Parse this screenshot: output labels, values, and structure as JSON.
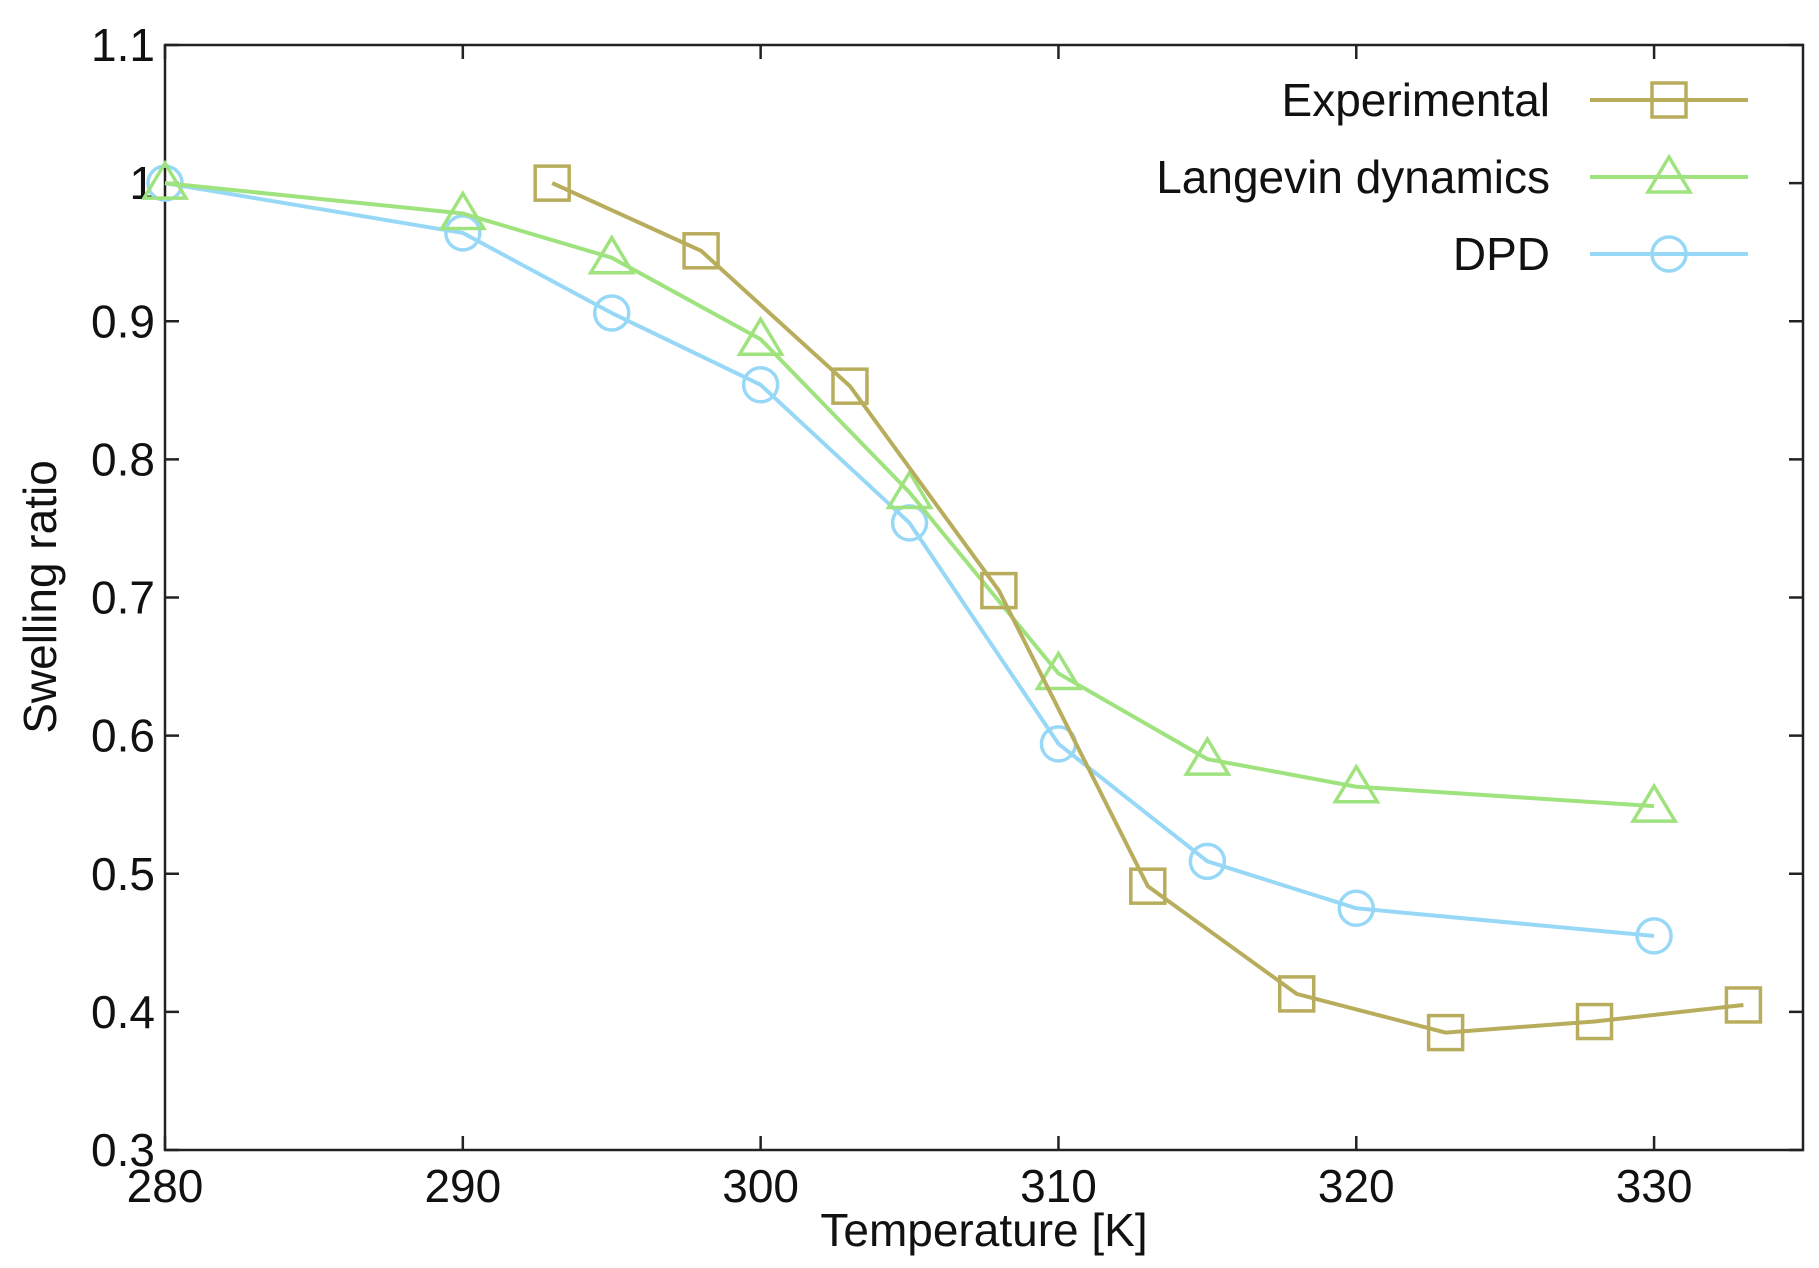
{
  "chart_data": {
    "type": "line",
    "title": "",
    "xlabel": "Temperature [K]",
    "ylabel": "Swelling ratio",
    "xlim": [
      280,
      335
    ],
    "ylim": [
      0.3,
      1.1
    ],
    "xticks": [
      280,
      290,
      300,
      310,
      320,
      330
    ],
    "xtick_labels": [
      "280",
      "290",
      "300",
      "310",
      "320",
      "330"
    ],
    "yticks": [
      0.3,
      0.4,
      0.5,
      0.6,
      0.7,
      0.8,
      0.9,
      1.0,
      1.1
    ],
    "ytick_labels": [
      "0.3",
      "0.4",
      "0.5",
      "0.6",
      "0.7",
      "0.8",
      "0.9",
      "1",
      "1.1"
    ],
    "grid": false,
    "legend_position": "top-right",
    "series": [
      {
        "name": "Experimental",
        "marker": "square",
        "color": "#b8ad5c",
        "x": [
          293,
          298,
          303,
          308,
          313,
          318,
          323,
          328,
          333
        ],
        "y": [
          1.0,
          0.951,
          0.853,
          0.705,
          0.491,
          0.413,
          0.385,
          0.393,
          0.405
        ]
      },
      {
        "name": "Langevin dynamics",
        "marker": "triangle",
        "color": "#9fe37e",
        "x": [
          280,
          290,
          295,
          300,
          305,
          310,
          315,
          320,
          330
        ],
        "y": [
          1.0,
          0.978,
          0.946,
          0.887,
          0.776,
          0.645,
          0.583,
          0.563,
          0.549
        ]
      },
      {
        "name": "DPD",
        "marker": "circle",
        "color": "#98d8f7",
        "x": [
          280,
          290,
          295,
          300,
          305,
          310,
          315,
          320,
          330
        ],
        "y": [
          1.0,
          0.964,
          0.906,
          0.854,
          0.754,
          0.594,
          0.509,
          0.475,
          0.455
        ]
      }
    ]
  }
}
